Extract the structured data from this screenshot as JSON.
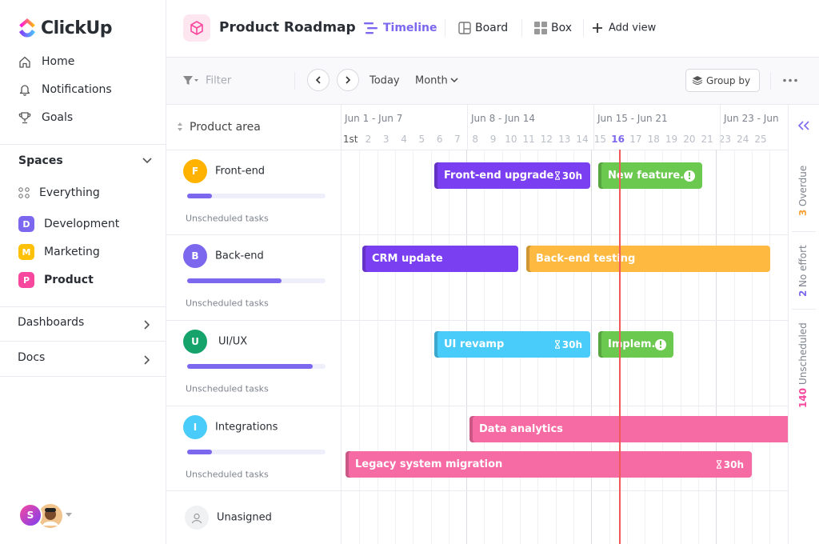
{
  "sidebar": {
    "logo": "ClickUp",
    "nav": [
      "Home",
      "Notifications",
      "Goals"
    ],
    "spaces_title": "Spaces",
    "everything": "Everything",
    "spaces": [
      {
        "badge": "D",
        "name": "Development",
        "color": "#7b68ee"
      },
      {
        "badge": "M",
        "name": "Marketing",
        "color": "#ffc107"
      },
      {
        "badge": "P",
        "name": "Product",
        "color": "#f7489e"
      }
    ],
    "sections": [
      "Dashboards",
      "Docs"
    ],
    "user_badge": "S"
  },
  "header": {
    "title": "Product Roadmap",
    "views": [
      "Timeline",
      "Board",
      "Box"
    ],
    "add_view": "Add view"
  },
  "toolbar": {
    "filter": "Filter",
    "today": "Today",
    "month": "Month",
    "group_by": "Group by"
  },
  "timeline": {
    "column_title": "Product area",
    "weeks": [
      "Jun 1 - Jun 7",
      "Jun 8 - Jun 14",
      "Jun 15 - Jun 21",
      "Jun 23 - Jun"
    ],
    "days": [
      "1st",
      "2",
      "3",
      "4",
      "5",
      "6",
      "7",
      "8",
      "9",
      "10",
      "11",
      "12",
      "13",
      "14",
      "15",
      "16",
      "17",
      "18",
      "19",
      "20",
      "21",
      "23",
      "24",
      "25"
    ],
    "rows": [
      {
        "badge": "F",
        "name": "Front-end",
        "color": "#ffb300",
        "progress": 18,
        "note": "Unscheduled tasks"
      },
      {
        "badge": "B",
        "name": "Back-end",
        "color": "#7b68ee",
        "progress": 68,
        "note": "Unscheduled tasks"
      },
      {
        "badge": "U",
        "name": "UI/UX",
        "color": "#15a36b",
        "progress": 91,
        "note": "Unscheduled tasks"
      },
      {
        "badge": "I",
        "name": "Integrations",
        "color": "#49ccf9",
        "progress": 18,
        "note": "Unscheduled tasks"
      }
    ],
    "unassigned": "Unasigned",
    "tasks": [
      {
        "name": "Front-end upgrade",
        "color": "#7b3ff2",
        "estimate": "30h"
      },
      {
        "name": "New feature..",
        "color": "#6bc950",
        "alert": true
      },
      {
        "name": "CRM update",
        "color": "#7b3ff2"
      },
      {
        "name": "Back-end testing",
        "color": "#fdb940"
      },
      {
        "name": "UI revamp",
        "color": "#49ccf9",
        "estimate": "30h"
      },
      {
        "name": "Implem..",
        "color": "#6bc950",
        "alert": true
      },
      {
        "name": "Data analytics",
        "color": "#f76ba4"
      },
      {
        "name": "Legacy system migration",
        "color": "#f76ba4",
        "estimate": "30h"
      }
    ]
  },
  "side_panel": [
    {
      "count": 3,
      "label": "Overdue",
      "color": "#f6a23a"
    },
    {
      "count": 2,
      "label": "No effort",
      "color": "#7b68ee"
    },
    {
      "count": 140,
      "label": "Unscheduled",
      "color": "#f7489e"
    }
  ]
}
